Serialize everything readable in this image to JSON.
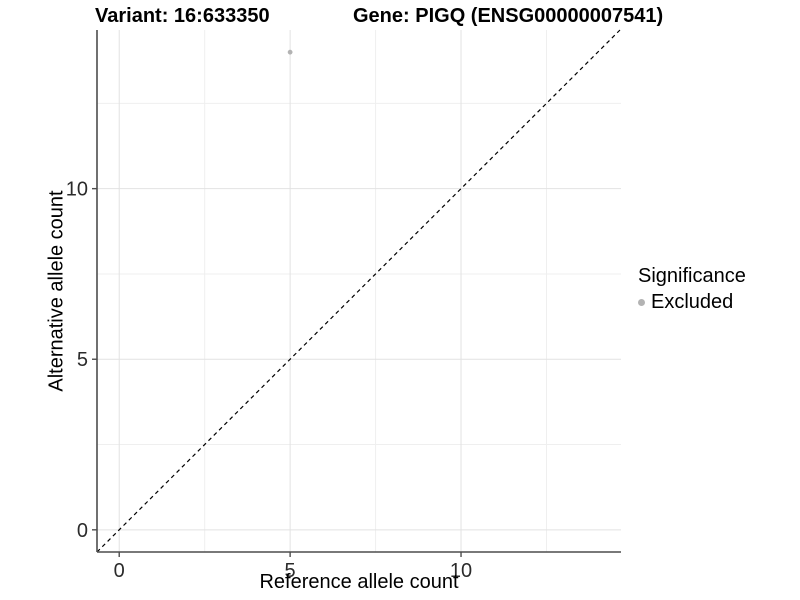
{
  "figure": {
    "title_left": "Variant: 16:633350",
    "title_right": "Gene: PIGQ (ENSG00000007541)"
  },
  "chart_data": {
    "type": "scatter",
    "title": "Variant: 16:633350  |  Gene: PIGQ (ENSG00000007541)",
    "xlabel": "Reference allele count",
    "ylabel": "Alternative allele count",
    "xlim": [
      -0.65,
      14.68
    ],
    "ylim": [
      -0.65,
      14.65
    ],
    "x_ticks": [
      0,
      5,
      10
    ],
    "y_ticks": [
      0,
      5,
      10
    ],
    "x_minor_gridlines": [
      2.5,
      7.5,
      12.5
    ],
    "y_minor_gridlines": [
      2.5,
      7.5,
      12.5
    ],
    "grid": true,
    "points": [
      {
        "x": 5,
        "y": 14,
        "series": "Excluded"
      }
    ],
    "reference_line": {
      "type": "identity y=x",
      "style": "dashed",
      "from": [
        -0.65,
        -0.65
      ],
      "to": [
        14.65,
        14.65
      ]
    },
    "legend": {
      "title": "Significance",
      "position": "right",
      "items": [
        {
          "label": "Excluded",
          "color": "#b3b3b3"
        }
      ]
    },
    "colors": {
      "point": "#b3b3b3",
      "axis_line": "#4d4d4d",
      "grid_major": "#e2e2e2",
      "grid_minor": "#efefef",
      "dashed_line": "#000000",
      "tick_text": "#2b2b2b",
      "background": "#ffffff"
    }
  }
}
